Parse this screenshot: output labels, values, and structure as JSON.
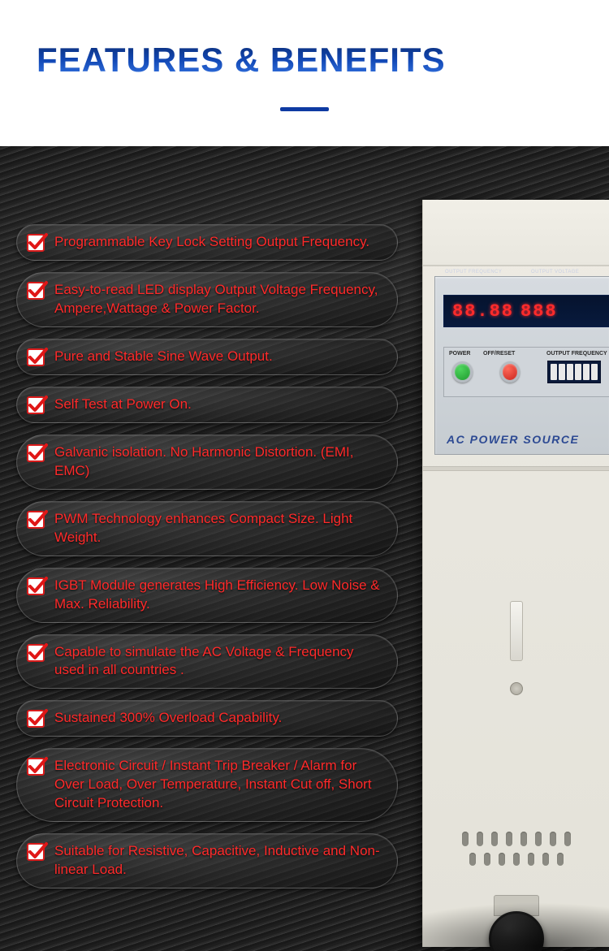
{
  "header": {
    "title": "FEATURES & BENEFITS",
    "title_gradient": [
      "#0a2a6e",
      "#1248b5",
      "#3a7be8"
    ],
    "underline_color": "#0e3aa2",
    "underline_width": 60
  },
  "theme": {
    "background": "#111111",
    "pill_text_color": "#ff2a2a",
    "pill_border": "rgba(255,255,255,0.22)",
    "check_border": "#d91b1b",
    "check_mark": "#e01717"
  },
  "features": [
    {
      "text": "Programmable Key Lock Setting Output Frequency."
    },
    {
      "text": "Easy-to-read LED display Output Voltage Frequency, Ampere,Wattage & Power Factor."
    },
    {
      "text": "Pure and Stable Sine Wave Output."
    },
    {
      "text": "Self Test at Power On."
    },
    {
      "text": "Galvanic isolation. No Harmonic Distortion. (EMI, EMC)"
    },
    {
      "text": "PWM Technology enhances Compact Size. Light Weight."
    },
    {
      "text": "IGBT Module generates High Efficiency. Low Noise & Max. Reliability."
    },
    {
      "text": "Capable to simulate the AC Voltage & Frequency used in all countries ."
    },
    {
      "text": "Sustained 300% Overload Capability."
    },
    {
      "text": "Electronic Circuit / Instant Trip Breaker / Alarm for Over Load, Over Temperature, Instant Cut off, Short Circuit Protection."
    },
    {
      "text": "Suitable for Resistive, Capacitive, Inductive and Non-linear Load."
    }
  ],
  "equipment": {
    "led_labels": {
      "freq": "OUTPUT  FREQUENCY",
      "volt": "OUTPUT  VOLTAGE"
    },
    "led_values": {
      "freq": "88.88",
      "volt": "888"
    },
    "controls": {
      "power_label": "POWER",
      "off_reset_label": "OFF/RESET",
      "freq_label": "OUTPUT FREQUENCY",
      "green_btn": "#1e9a2e",
      "red_btn": "#c9231c"
    },
    "brand_label": "AC  POWER  SOURCE",
    "cabinet_color": "#e8e6de",
    "panel_color": "#cdd2d7"
  }
}
